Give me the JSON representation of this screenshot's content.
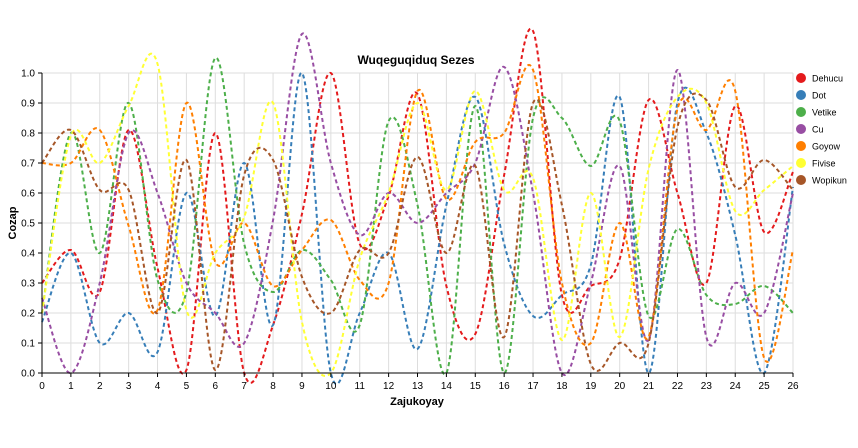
{
  "chart_data": {
    "type": "line",
    "title": "Wuqeguqiduq Sezes",
    "xlabel": "Zajukoyay",
    "ylabel": "Cozap",
    "xlim": [
      0,
      26
    ],
    "ylim": [
      0,
      1.0
    ],
    "x_ticks": [
      "0",
      "1",
      "2",
      "3",
      "4",
      "5",
      "6",
      "7",
      "8",
      "9",
      "10",
      "11",
      "12",
      "13",
      "14",
      "15",
      "16",
      "17",
      "18",
      "19",
      "20",
      "21",
      "22",
      "23",
      "24",
      "25",
      "26"
    ],
    "y_ticks": [
      "0.0",
      "0.1",
      "0.2",
      "0.3",
      "0.4",
      "0.5",
      "0.6",
      "0.7",
      "0.8",
      "0.9",
      "1.0"
    ],
    "grid": true,
    "legend_position": "right",
    "line_style": "dashed, smooth",
    "x": [
      0,
      1,
      2,
      3,
      4,
      5,
      6,
      7,
      8,
      9,
      10,
      11,
      12,
      13,
      14,
      15,
      16,
      17,
      18,
      19,
      20,
      21,
      22,
      23,
      24,
      25,
      26
    ],
    "series": [
      {
        "name": "Dehucu",
        "color": "#e41a1c",
        "values": [
          0.3,
          0.41,
          0.27,
          0.81,
          0.35,
          0.01,
          0.8,
          0.0,
          0.16,
          0.53,
          1.0,
          0.43,
          0.59,
          0.93,
          0.29,
          0.13,
          0.66,
          1.14,
          0.26,
          0.29,
          0.38,
          0.91,
          0.6,
          0.3,
          0.89,
          0.47,
          0.67
        ]
      },
      {
        "name": "Dot",
        "color": "#377eb8",
        "values": [
          0.17,
          0.4,
          0.1,
          0.2,
          0.07,
          0.6,
          0.19,
          0.7,
          0.16,
          1.0,
          0.0,
          0.2,
          0.4,
          0.08,
          0.56,
          0.92,
          0.43,
          0.19,
          0.26,
          0.36,
          0.92,
          0.0,
          0.9,
          0.8,
          0.46,
          0.0,
          0.62
        ]
      },
      {
        "name": "Vetike",
        "color": "#4daf4a",
        "values": [
          0.2,
          0.8,
          0.4,
          0.9,
          0.31,
          0.27,
          1.05,
          0.43,
          0.27,
          0.41,
          0.31,
          0.16,
          0.84,
          0.56,
          0.0,
          0.89,
          0.0,
          0.85,
          0.85,
          0.69,
          0.84,
          0.19,
          0.48,
          0.26,
          0.23,
          0.29,
          0.2
        ]
      },
      {
        "name": "Cu",
        "color": "#984ea3",
        "values": [
          0.25,
          0.0,
          0.3,
          0.8,
          0.6,
          0.3,
          0.2,
          0.1,
          0.51,
          1.13,
          0.7,
          0.46,
          0.6,
          0.5,
          0.6,
          0.7,
          1.02,
          0.6,
          0.0,
          0.3,
          0.69,
          0.11,
          1.01,
          0.12,
          0.3,
          0.2,
          0.6
        ]
      },
      {
        "name": "Goyow",
        "color": "#ff7f00",
        "values": [
          0.7,
          0.7,
          0.81,
          0.49,
          0.21,
          0.9,
          0.37,
          0.5,
          0.29,
          0.41,
          0.51,
          0.31,
          0.3,
          0.94,
          0.58,
          0.77,
          0.8,
          1.01,
          0.3,
          0.1,
          0.5,
          0.12,
          0.88,
          0.81,
          0.94,
          0.05,
          0.41
        ]
      },
      {
        "name": "Fivise",
        "color": "#ffff33",
        "values": [
          0.2,
          0.79,
          0.7,
          0.89,
          1.03,
          0.21,
          0.4,
          0.52,
          0.9,
          0.17,
          0.0,
          0.38,
          0.6,
          0.9,
          0.61,
          0.94,
          0.61,
          0.65,
          0.11,
          0.6,
          0.12,
          0.68,
          0.92,
          0.9,
          0.54,
          0.61,
          0.69
        ]
      },
      {
        "name": "Wopikun",
        "color": "#a65628",
        "values": [
          0.7,
          0.81,
          0.61,
          0.61,
          0.2,
          0.71,
          0.01,
          0.66,
          0.71,
          0.32,
          0.2,
          0.41,
          0.4,
          0.72,
          0.4,
          0.69,
          0.12,
          0.9,
          0.56,
          0.03,
          0.1,
          0.1,
          0.82,
          0.91,
          0.62,
          0.71,
          0.61
        ]
      }
    ]
  }
}
